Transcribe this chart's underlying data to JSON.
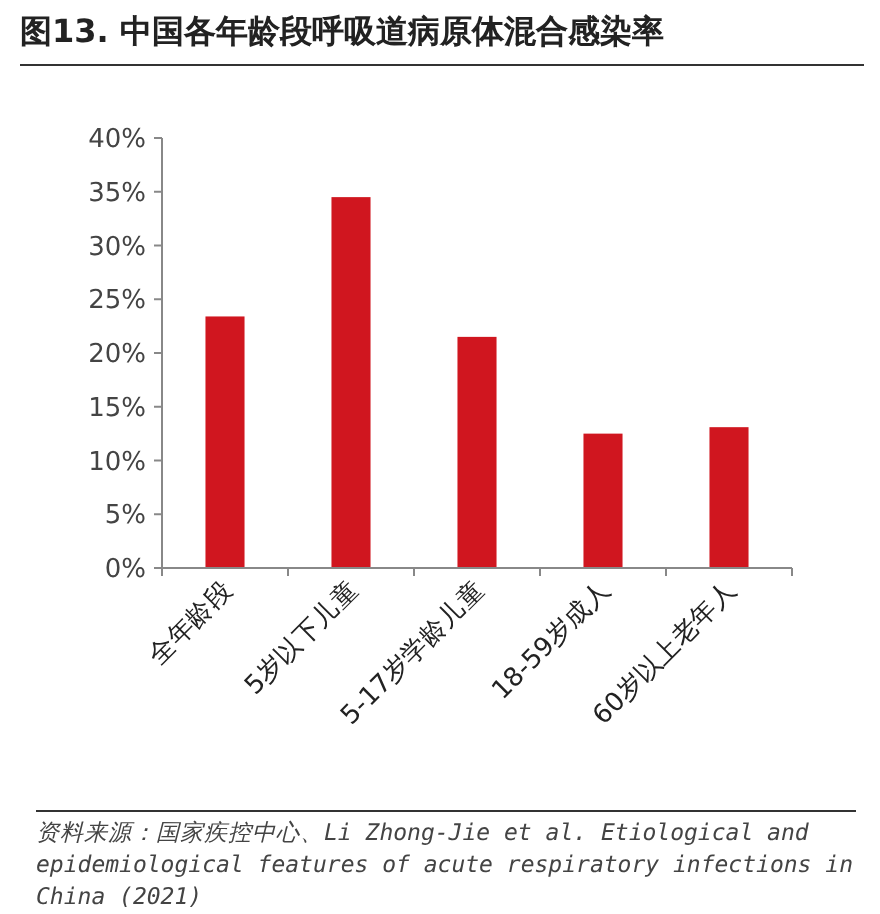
{
  "chart_data": {
    "type": "bar",
    "title": "图13. 中国各年龄段呼吸道病原体混合感染率",
    "categories": [
      "全年龄段",
      "5岁以下儿童",
      "5-17岁学龄儿童",
      "18-59岁成人",
      "60岁以上老年人"
    ],
    "values": [
      23.4,
      34.5,
      21.5,
      12.5,
      13.1
    ],
    "color": "#d0161f",
    "ylim": [
      0,
      40
    ],
    "yticks": [
      {
        "value": 0,
        "label": "0%"
      },
      {
        "value": 5,
        "label": "5%"
      },
      {
        "value": 10,
        "label": "10%"
      },
      {
        "value": 15,
        "label": "15%"
      },
      {
        "value": 20,
        "label": "20%"
      },
      {
        "value": 25,
        "label": "25%"
      },
      {
        "value": 30,
        "label": "30%"
      },
      {
        "value": 35,
        "label": "35%"
      },
      {
        "value": 40,
        "label": "40%"
      }
    ],
    "grid": false,
    "annotations": [
      "资料来源：国家疾控中心、Li Zhong-Jie et al. Etiological and epidemiological features of acute respiratory infections in China (2021)"
    ]
  }
}
